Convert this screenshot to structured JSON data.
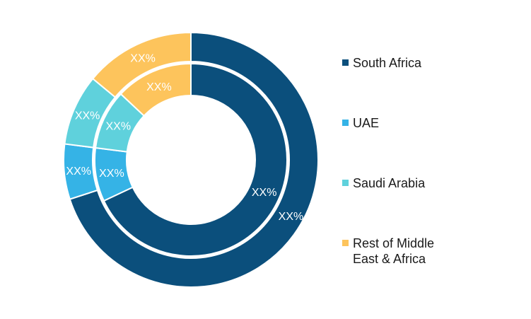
{
  "chart_data": {
    "type": "donut",
    "title": "",
    "rings": [
      {
        "ring": "outer",
        "slices": [
          {
            "category": "South Africa",
            "value": 70,
            "label": "XX%"
          },
          {
            "category": "UAE",
            "value": 7,
            "label": "XX%"
          },
          {
            "category": "Saudi Arabia",
            "value": 9,
            "label": "XX%"
          },
          {
            "category": "Rest of Middle East & Africa",
            "value": 14,
            "label": "XX%"
          }
        ]
      },
      {
        "ring": "inner",
        "slices": [
          {
            "category": "South Africa",
            "value": 68,
            "label": "XX%"
          },
          {
            "category": "UAE",
            "value": 9,
            "label": "XX%"
          },
          {
            "category": "Saudi Arabia",
            "value": 10,
            "label": "XX%"
          },
          {
            "category": "Rest of Middle East & Africa",
            "value": 13,
            "label": "XX%"
          }
        ]
      }
    ],
    "legend": {
      "position": "right",
      "entries": [
        {
          "label": "South Africa",
          "color": "#0b4f7c"
        },
        {
          "label": "UAE",
          "color": "#35b3e6"
        },
        {
          "label": "Saudi Arabia",
          "color": "#5fd1dc"
        },
        {
          "label": "Rest of Middle\nEast & Africa",
          "color": "#fdc45c"
        }
      ]
    },
    "colors": [
      "#0b4f7c",
      "#35b3e6",
      "#5fd1dc",
      "#fdc45c"
    ]
  }
}
